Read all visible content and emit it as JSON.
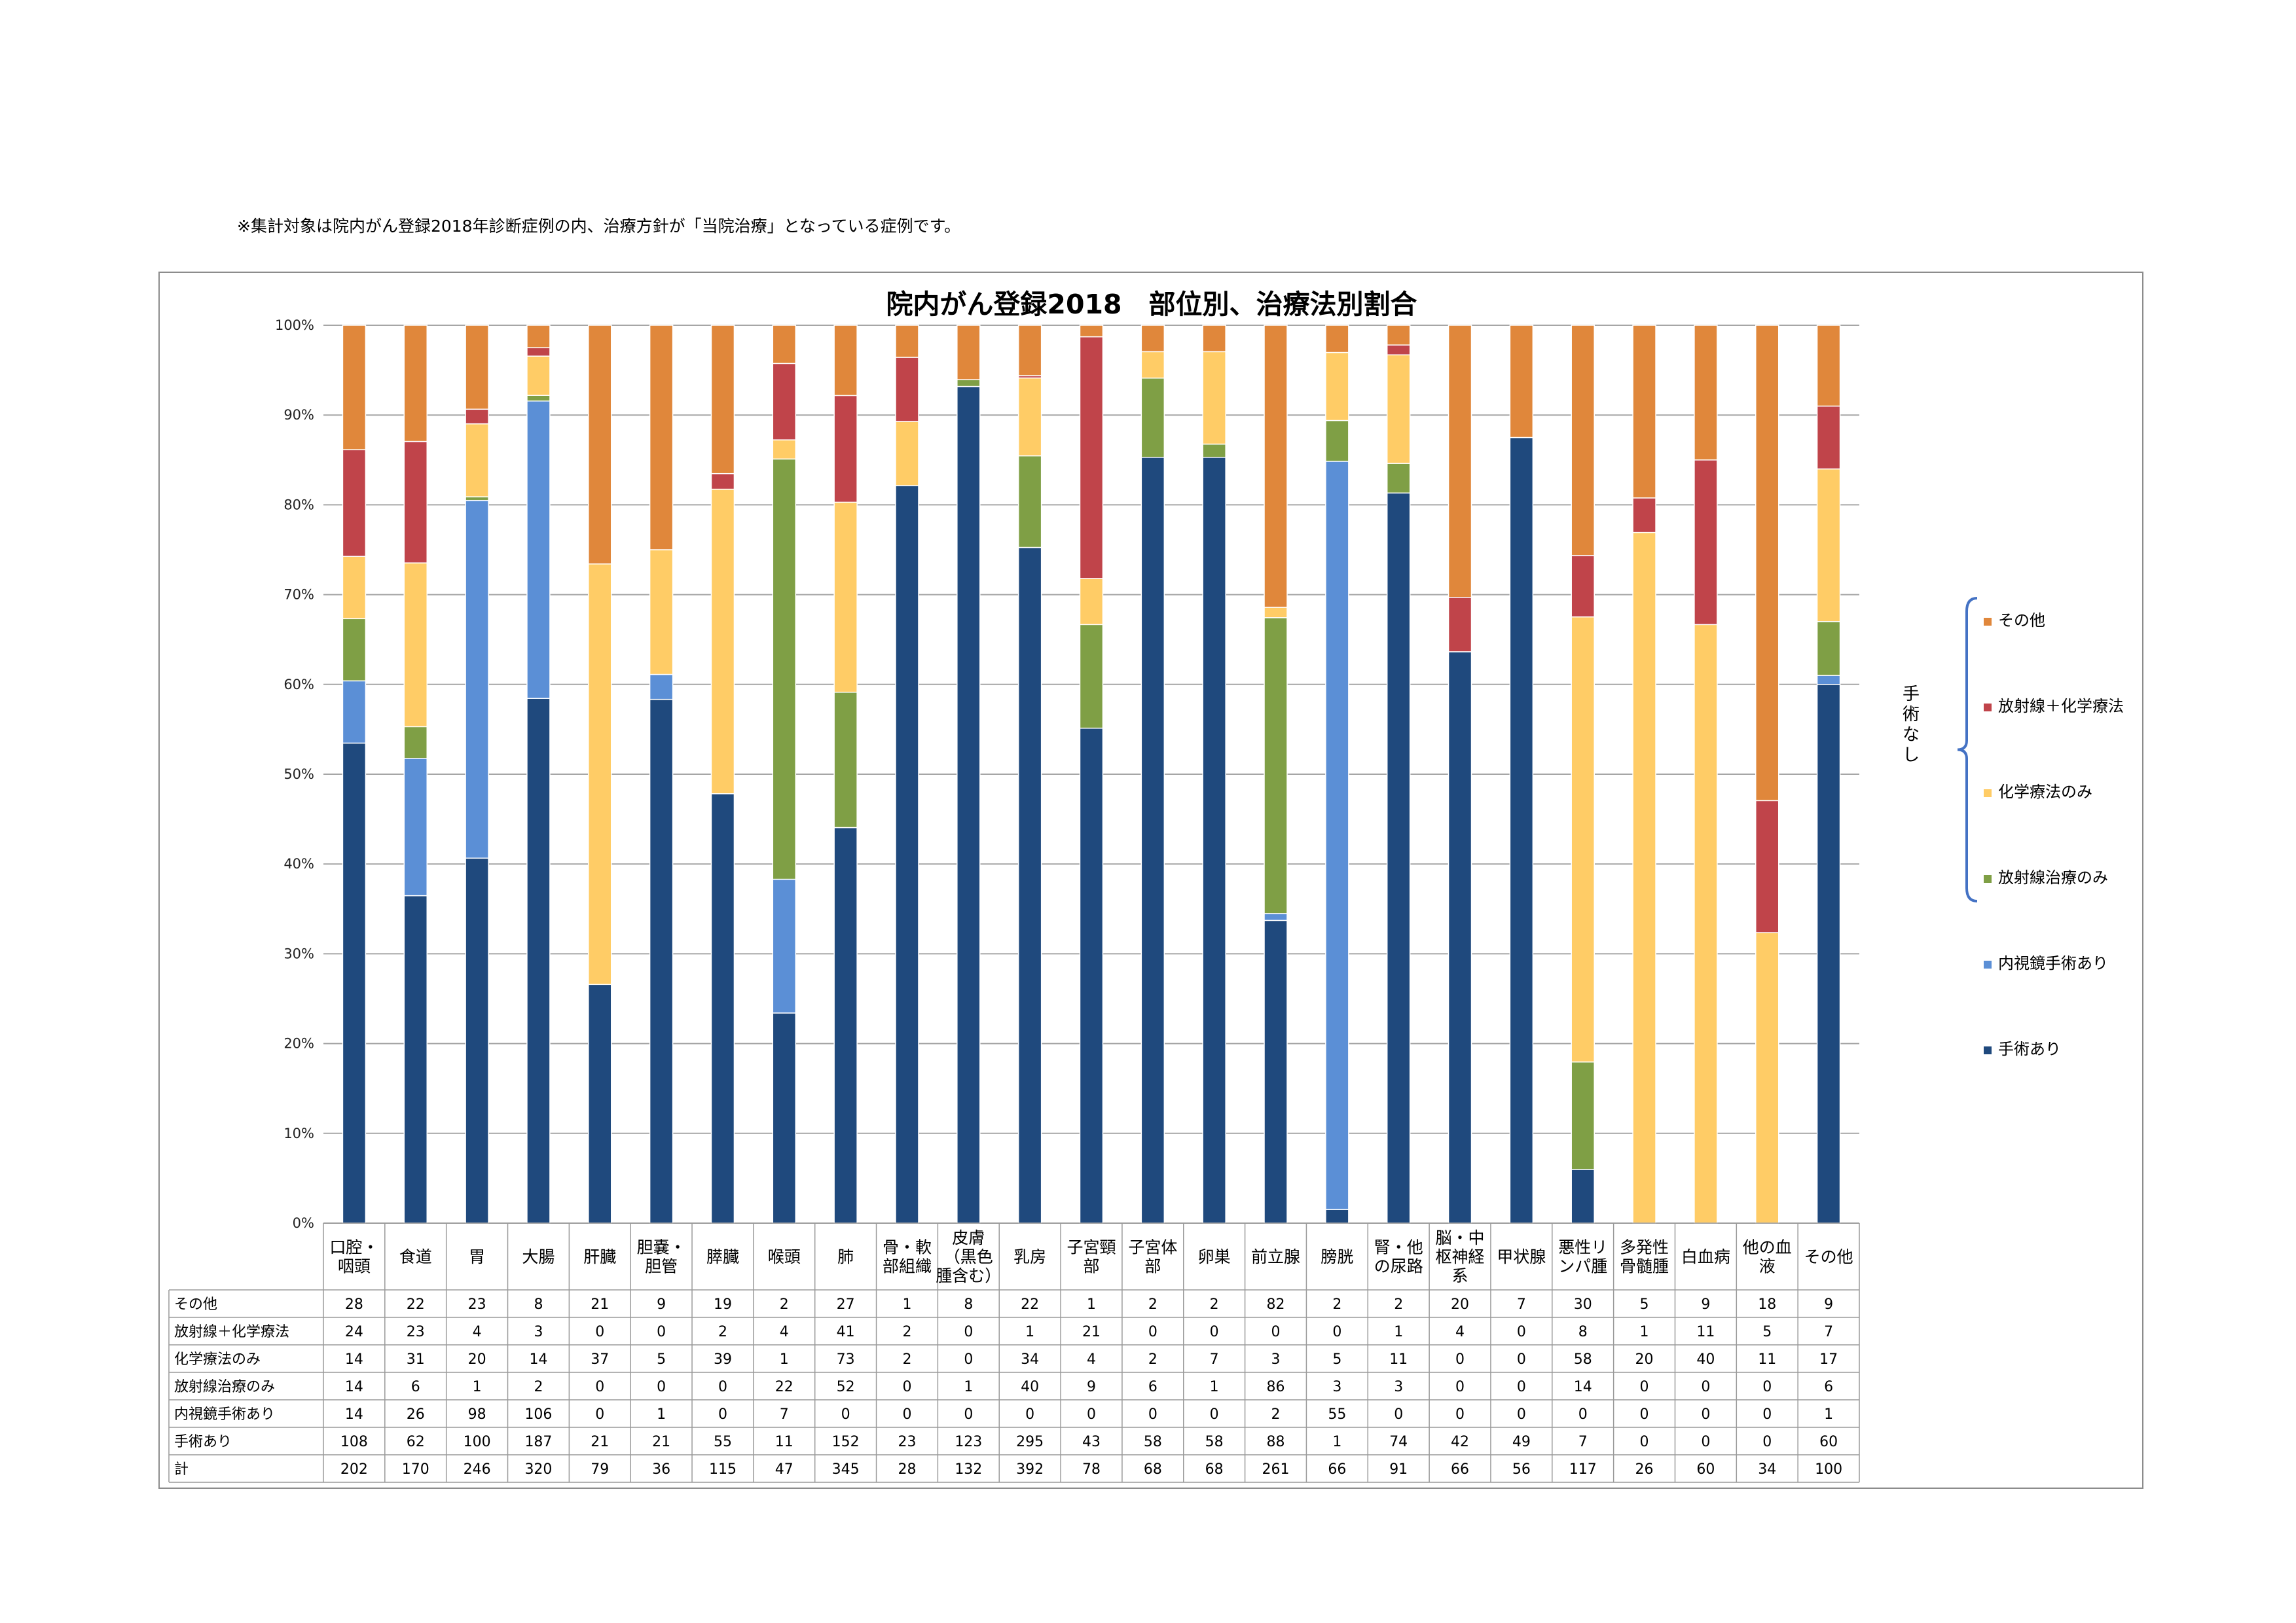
{
  "note": "※集計対象は院内がん登録2018年診断症例の内、治療方針が「当院治療」となっている症例です。",
  "chart_data": {
    "type": "bar",
    "stacked": "percent",
    "title": "院内がん登録2018　部位別、治療法別割合",
    "y_ticks": [
      "0%",
      "10%",
      "20%",
      "30%",
      "40%",
      "50%",
      "60%",
      "70%",
      "80%",
      "90%",
      "100%"
    ],
    "ylim": [
      0,
      100
    ],
    "grid": true,
    "legend_position": "right",
    "categories": [
      [
        "口腔・",
        "咽頭"
      ],
      [
        "食道"
      ],
      [
        "胃"
      ],
      [
        "大腸"
      ],
      [
        "肝臓"
      ],
      [
        "胆嚢・",
        "胆管"
      ],
      [
        "膵臓"
      ],
      [
        "喉頭"
      ],
      [
        "肺"
      ],
      [
        "骨・軟",
        "部組織"
      ],
      [
        "皮膚",
        "（黒色",
        "腫含む）"
      ],
      [
        "乳房"
      ],
      [
        "子宮頸",
        "部"
      ],
      [
        "子宮体",
        "部"
      ],
      [
        "卵巣"
      ],
      [
        "前立腺"
      ],
      [
        "膀胱"
      ],
      [
        "腎・他",
        "の尿路"
      ],
      [
        "脳・中",
        "枢神経",
        "系"
      ],
      [
        "甲状腺"
      ],
      [
        "悪性リ",
        "ンパ腫"
      ],
      [
        "多発性",
        "骨髄腫"
      ],
      [
        "白血病"
      ],
      [
        "他の血",
        "液"
      ],
      [
        "その他"
      ]
    ],
    "series": [
      {
        "name": "その他",
        "color": "#E0873B",
        "values": [
          28,
          22,
          23,
          8,
          21,
          9,
          19,
          2,
          27,
          1,
          8,
          22,
          1,
          2,
          2,
          82,
          2,
          2,
          20,
          7,
          30,
          5,
          9,
          18,
          9
        ]
      },
      {
        "name": "放射線＋化学療法",
        "color": "#C0444A",
        "values": [
          24,
          23,
          4,
          3,
          0,
          0,
          2,
          4,
          41,
          2,
          0,
          1,
          21,
          0,
          0,
          0,
          0,
          1,
          4,
          0,
          8,
          1,
          11,
          5,
          7
        ]
      },
      {
        "name": "化学療法のみ",
        "color": "#FFCC66",
        "values": [
          14,
          31,
          20,
          14,
          37,
          5,
          39,
          1,
          73,
          2,
          0,
          34,
          4,
          2,
          7,
          3,
          5,
          11,
          0,
          0,
          58,
          20,
          40,
          11,
          17
        ]
      },
      {
        "name": "放射線治療のみ",
        "color": "#7F9F45",
        "values": [
          14,
          6,
          1,
          2,
          0,
          0,
          0,
          22,
          52,
          0,
          1,
          40,
          9,
          6,
          1,
          86,
          3,
          3,
          0,
          0,
          14,
          0,
          0,
          0,
          6
        ]
      },
      {
        "name": "内視鏡手術あり",
        "color": "#5B8FD6",
        "values": [
          14,
          26,
          98,
          106,
          0,
          1,
          0,
          7,
          0,
          0,
          0,
          0,
          0,
          0,
          0,
          2,
          55,
          0,
          0,
          0,
          0,
          0,
          0,
          0,
          1
        ]
      },
      {
        "name": "手術あり",
        "color": "#1F497D",
        "values": [
          108,
          62,
          100,
          187,
          21,
          21,
          55,
          11,
          152,
          23,
          123,
          295,
          43,
          58,
          58,
          88,
          1,
          74,
          42,
          49,
          7,
          0,
          0,
          0,
          60
        ]
      }
    ],
    "totals_label": "計",
    "totals": [
      202,
      170,
      246,
      320,
      79,
      36,
      115,
      47,
      345,
      28,
      132,
      392,
      78,
      68,
      68,
      261,
      66,
      91,
      66,
      56,
      117,
      26,
      60,
      34,
      100
    ],
    "bracket_label": "手術なし"
  }
}
